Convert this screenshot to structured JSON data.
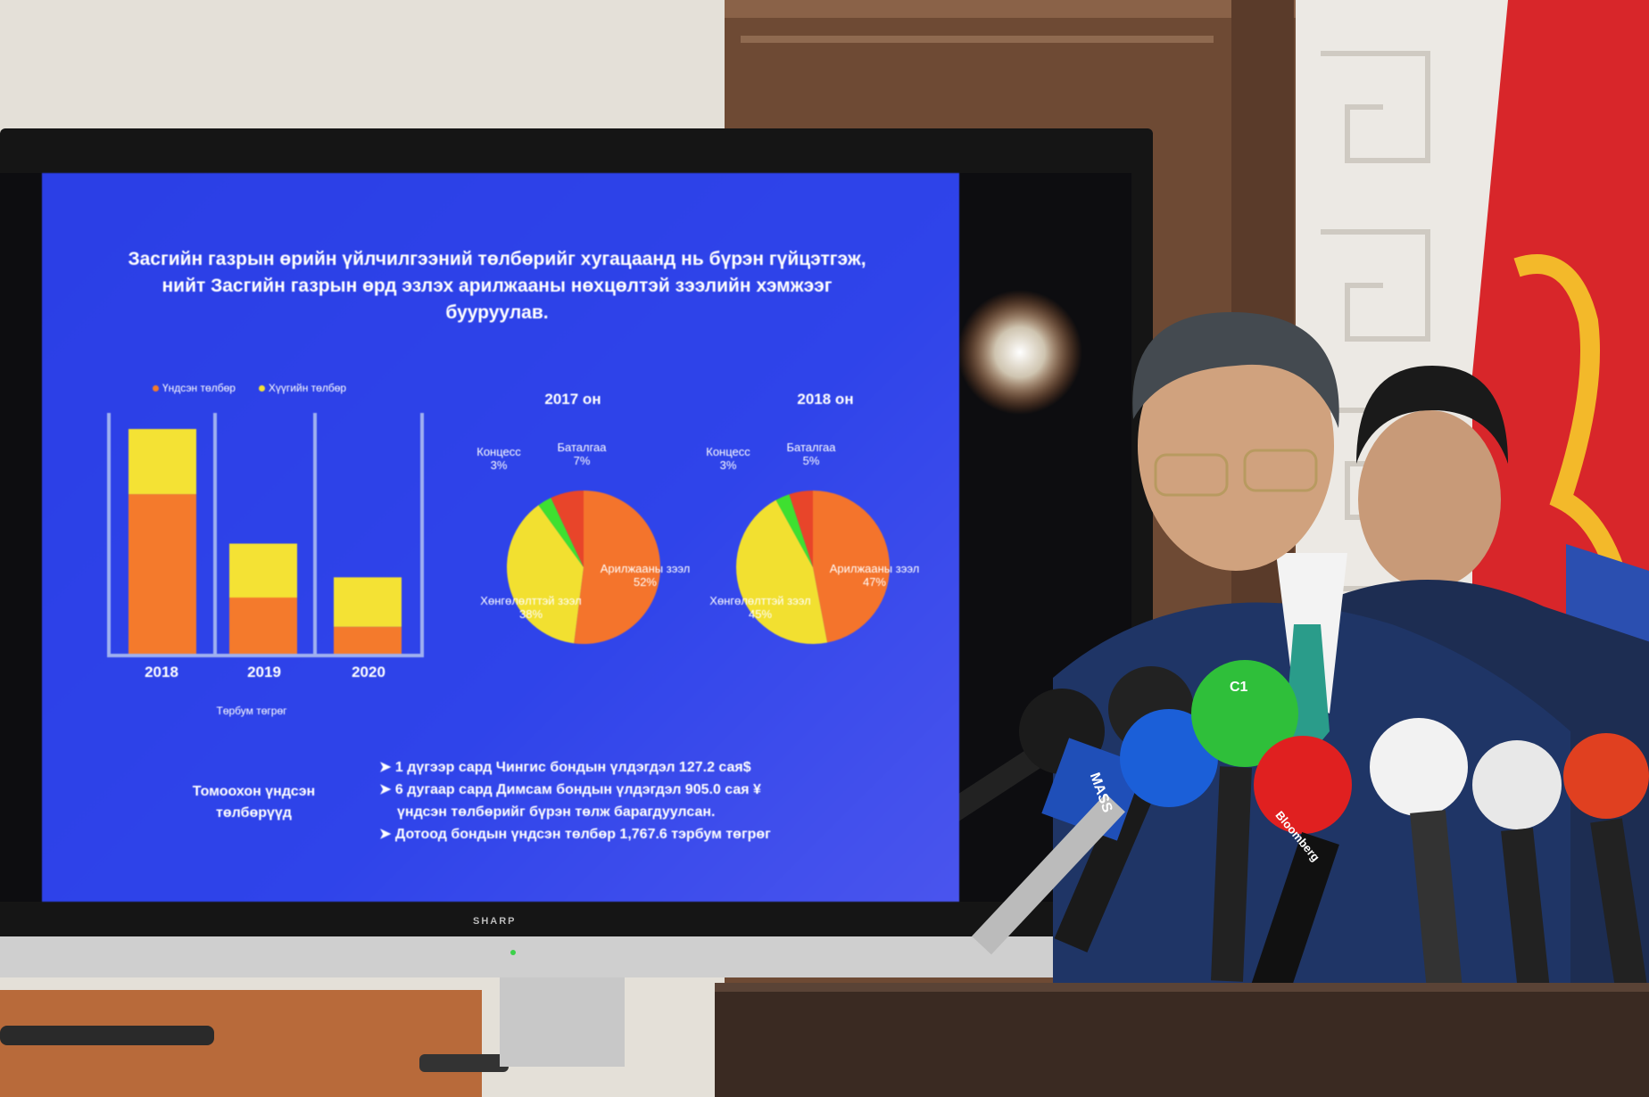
{
  "slide": {
    "title": "Засгийн газрын өрийн үйлчилгээний төлбөрийг хугацаанд нь бүрэн гүйцэтгэж, нийт Засгийн газрын өрд эзлэх арилжааны нөхцөлтэй зээлийн хэмжээг бууруулав.",
    "bar_chart": {
      "legend": [
        "Үндсэн төлбөр",
        "Хүүгийн төлбөр"
      ],
      "categories": [
        "2018",
        "2019",
        "2020"
      ],
      "xlabel": "Төрбум төгрөг",
      "colors": {
        "principal": "#f47a2c",
        "interest": "#f4e234"
      },
      "relative_heights_of_tallest": {
        "principal": [
          0.71,
          0.25,
          0.12
        ],
        "interest": [
          0.29,
          0.24,
          0.22
        ]
      }
    },
    "pies": [
      {
        "title": "2017 он",
        "slices": [
          {
            "label": "Арилжааны зээл",
            "value": 52,
            "display": "52%",
            "color": "#f4742c"
          },
          {
            "label": "Хөнгөлөлттэй зээл",
            "value": 38,
            "display": "38%",
            "color": "#f2e030"
          },
          {
            "label": "Концесс",
            "value": 3,
            "display": "3%",
            "color": "#3ee030"
          },
          {
            "label": "Баталгаа",
            "value": 7,
            "display": "7%",
            "color": "#e8452a"
          }
        ]
      },
      {
        "title": "2018 он",
        "slices": [
          {
            "label": "Арилжааны зээл",
            "value": 47,
            "display": "47%",
            "color": "#f4742c"
          },
          {
            "label": "Хөнгөлөлттэй зээл",
            "value": 45,
            "display": "45%",
            "color": "#f2e030"
          },
          {
            "label": "Концесс",
            "value": 3,
            "display": "3%",
            "color": "#3ee030"
          },
          {
            "label": "Баталгаа",
            "value": 5,
            "display": "5%",
            "color": "#e8452a"
          }
        ]
      }
    ],
    "footer_heading": "Томоохон үндсэн төлбөрүүд",
    "bullets": [
      "1 дүгээр сард Чингис бондын үлдэгдэл 127.2 сая$",
      "6 дугаар сард Димсам бондын үлдэгдэл 905.0 сая ¥",
      "үндсэн төлбөрийг бүрэн төлж барагдуулсан.",
      "Дотоод бондын үндсэн төлбөр 1,767.6 тэрбум төгрөг"
    ]
  },
  "tv_brand": "SHARP",
  "mic_labels": [
    "MASS",
    "Bloomberg",
    "C1"
  ],
  "colors": {
    "slide_bg": "#2f44ea",
    "flag_red": "#d8262a",
    "flag_gold": "#f3b92a",
    "suit": "#1f3566",
    "podium": "#3a2a22"
  }
}
